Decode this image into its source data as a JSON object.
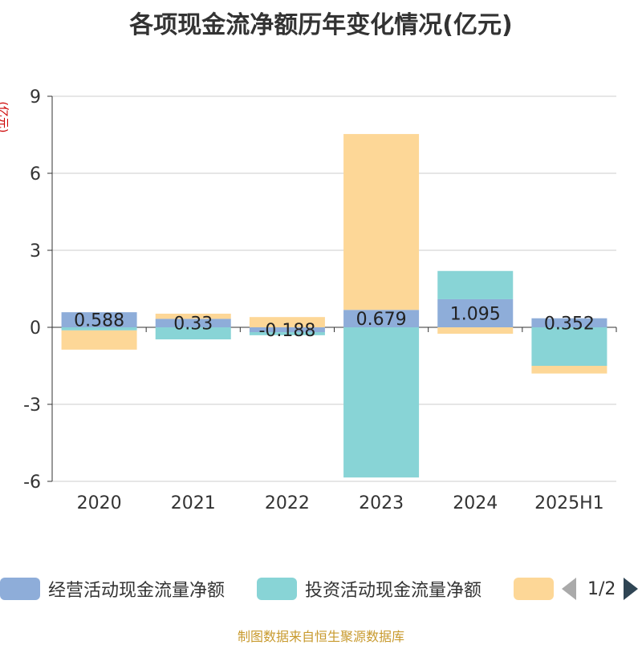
{
  "chart_data": {
    "type": "bar",
    "stacked": true,
    "title": "各项现金流净额历年变化情况(亿元)",
    "y_unit": "(亿元)",
    "categories": [
      "2020",
      "2021",
      "2022",
      "2023",
      "2024",
      "2025H1"
    ],
    "ylim": [
      -6,
      9
    ],
    "yticks": [
      9,
      6,
      3,
      0,
      -3,
      -6
    ],
    "grid": true,
    "legend_position": "bottom",
    "series": [
      {
        "name": "经营活动现金流量净额",
        "color": "#8eadd9",
        "values": [
          0.588,
          0.33,
          -0.188,
          0.679,
          1.095,
          0.352
        ],
        "labels": [
          "0.588",
          "0.33",
          "-0.188",
          "0.679",
          "1.095",
          "0.352"
        ]
      },
      {
        "name": "投资活动现金流量净额",
        "color": "#88d4d6",
        "values": [
          -0.12,
          -0.47,
          -0.12,
          -5.85,
          1.1,
          -1.5
        ]
      },
      {
        "name": "",
        "color": "#fdd797",
        "values": [
          -0.75,
          0.2,
          0.4,
          6.85,
          -0.25,
          -0.3
        ]
      }
    ]
  },
  "legend": {
    "page": "1/2"
  },
  "source": "制图数据来自恒生聚源数据库"
}
